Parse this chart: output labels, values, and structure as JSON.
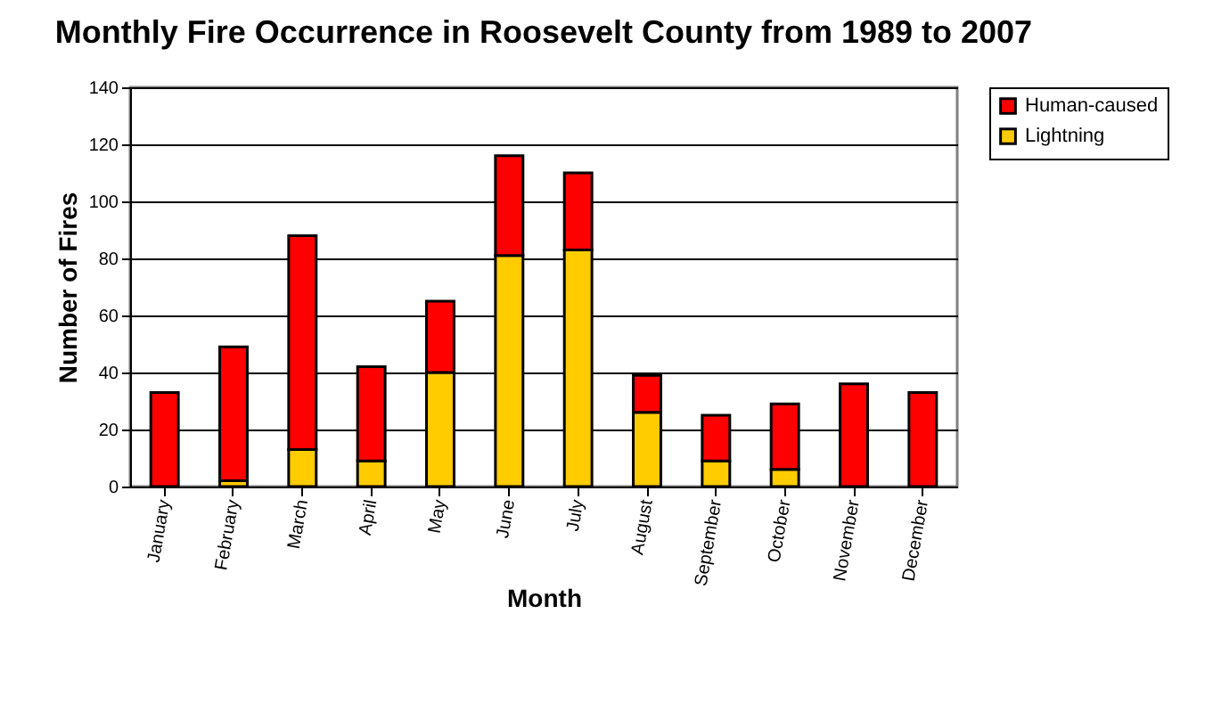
{
  "chart_data": {
    "type": "bar",
    "stacked": true,
    "title": "Monthly Fire Occurrence in Roosevelt County\nfrom 1989 to 2007",
    "xlabel": "Month",
    "ylabel": "Number of Fires",
    "categories": [
      "January",
      "February",
      "March",
      "April",
      "May",
      "June",
      "July",
      "August",
      "September",
      "October",
      "November",
      "December"
    ],
    "series": [
      {
        "name": "Lightning",
        "color": "#ffcc00",
        "values": [
          0,
          2,
          13,
          9,
          40,
          81,
          83,
          26,
          9,
          6,
          0,
          0
        ]
      },
      {
        "name": "Human-caused",
        "color": "#ff0000",
        "values": [
          33,
          47,
          75,
          33,
          25,
          35,
          27,
          13,
          16,
          23,
          36,
          33
        ]
      }
    ],
    "ylim": [
      0,
      140
    ],
    "yticks": [
      0,
      20,
      40,
      60,
      80,
      100,
      120,
      140
    ],
    "grid": "y",
    "legend": "right"
  }
}
